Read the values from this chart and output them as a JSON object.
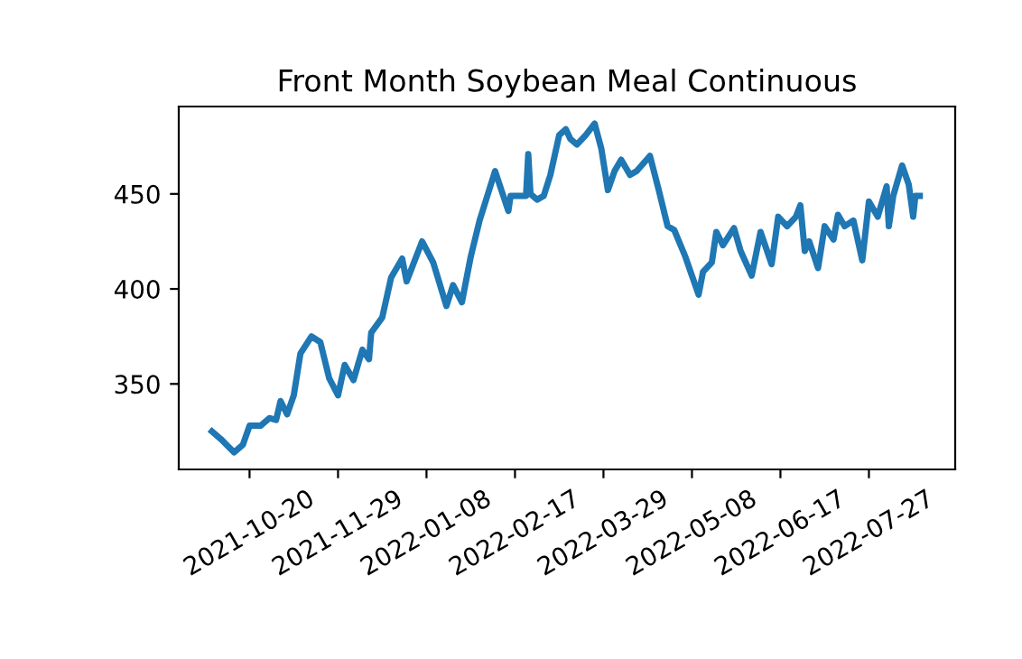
{
  "chart_data": {
    "type": "line",
    "title": "Front Month Soybean Meal Continuous",
    "x": [
      "2021-10-03",
      "2021-10-07",
      "2021-10-13",
      "2021-10-17",
      "2021-10-20",
      "2021-10-25",
      "2021-10-29",
      "2021-11-01",
      "2021-11-03",
      "2021-11-06",
      "2021-11-09",
      "2021-11-12",
      "2021-11-17",
      "2021-11-21",
      "2021-11-25",
      "2021-11-29",
      "2021-12-02",
      "2021-12-06",
      "2021-12-10",
      "2021-12-13",
      "2021-12-14",
      "2021-12-19",
      "2021-12-23",
      "2021-12-28",
      "2021-12-30",
      "2022-01-06",
      "2022-01-11",
      "2022-01-17",
      "2022-01-20",
      "2022-01-24",
      "2022-01-28",
      "2022-02-01",
      "2022-02-08",
      "2022-02-14",
      "2022-02-15",
      "2022-02-22",
      "2022-02-23",
      "2022-02-24",
      "2022-02-27",
      "2022-03-02",
      "2022-03-05",
      "2022-03-09",
      "2022-03-12",
      "2022-03-14",
      "2022-03-17",
      "2022-03-21",
      "2022-03-25",
      "2022-03-28",
      "2022-03-31",
      "2022-04-03",
      "2022-04-06",
      "2022-04-10",
      "2022-04-13",
      "2022-04-19",
      "2022-04-23",
      "2022-04-27",
      "2022-04-30",
      "2022-05-05",
      "2022-05-11",
      "2022-05-13",
      "2022-05-17",
      "2022-05-19",
      "2022-05-22",
      "2022-05-27",
      "2022-05-30",
      "2022-06-04",
      "2022-06-08",
      "2022-06-13",
      "2022-06-16",
      "2022-06-20",
      "2022-06-24",
      "2022-06-26",
      "2022-06-28",
      "2022-06-30",
      "2022-07-04",
      "2022-07-07",
      "2022-07-11",
      "2022-07-13",
      "2022-07-16",
      "2022-07-20",
      "2022-07-24",
      "2022-07-27",
      "2022-07-31",
      "2022-08-04",
      "2022-08-05",
      "2022-08-07",
      "2022-08-11",
      "2022-08-14",
      "2022-08-16",
      "2022-08-17",
      "2022-08-19"
    ],
    "series": [
      {
        "color": "#1f77b4",
        "values": [
          325,
          321,
          314,
          318,
          328,
          328,
          332,
          331,
          341,
          334,
          344,
          366,
          375,
          372,
          353,
          344,
          360,
          352,
          368,
          363,
          377,
          385,
          406,
          416,
          404,
          425,
          414,
          391,
          402,
          393,
          417,
          436,
          462,
          441,
          449,
          449,
          471,
          450,
          447,
          449,
          460,
          481,
          484,
          479,
          476,
          481,
          487,
          474,
          452,
          462,
          468,
          460,
          462,
          470,
          452,
          433,
          431,
          417,
          397,
          409,
          414,
          430,
          423,
          432,
          420,
          407,
          430,
          413,
          438,
          433,
          438,
          444,
          420,
          425,
          411,
          433,
          426,
          439,
          433,
          436,
          415,
          446,
          438,
          454,
          433,
          449,
          465,
          455,
          438,
          449,
          449
        ]
      }
    ],
    "xlim": [
      "2021-09-18",
      "2022-09-04"
    ],
    "xticks": [
      "2021-10-20",
      "2021-11-29",
      "2022-01-08",
      "2022-02-17",
      "2022-03-29",
      "2022-05-08",
      "2022-06-17",
      "2022-07-27"
    ],
    "ylim": [
      305,
      496
    ],
    "yticks": [
      350,
      400,
      450
    ],
    "grid": false,
    "legend": false
  }
}
